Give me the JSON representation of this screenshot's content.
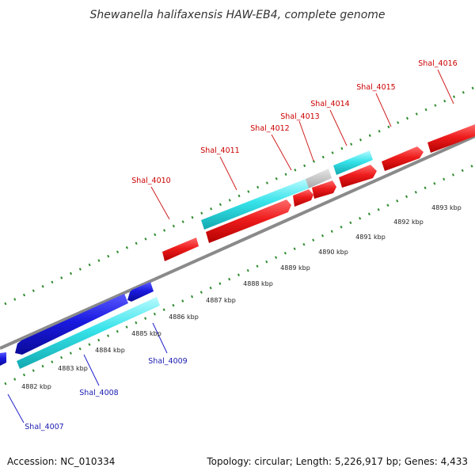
{
  "title": "Shewanella halifaxensis HAW-EB4, complete genome",
  "footer": {
    "accession": "Accession: NC_010334",
    "summary": "Topology: circular; Length: 5,226,917 bp; Genes: 4,433"
  },
  "colors": {
    "forward_gene": "#e8141a",
    "reverse_gene": "#1414d6",
    "forward_cds": "#33e0e8",
    "reverse_cds": "#33e0e8",
    "other_feature": "#c4c4c4",
    "backbone": "#8a8a8a",
    "ticks": "#2e8b2e",
    "forward_label": "#cc0000",
    "reverse_label": "#1a1ab0",
    "leader_forward": "#d02020",
    "leader_reverse": "#2222cc"
  },
  "scale_labels": [
    "4882 kbp",
    "4883 kbp",
    "4884 kbp",
    "4885 kbp",
    "4886 kbp",
    "4887 kbp",
    "4888 kbp",
    "4889 kbp",
    "4890 kbp",
    "4891 kbp",
    "4892 kbp",
    "4893 kbp"
  ],
  "forward_labels": [
    "Shal_4010",
    "Shal_4011",
    "Shal_4012",
    "Shal_4013",
    "Shal_4014",
    "Shal_4015",
    "Shal_4016"
  ],
  "reverse_labels": [
    "Shal_4007",
    "Shal_4008",
    "Shal_4009"
  ]
}
